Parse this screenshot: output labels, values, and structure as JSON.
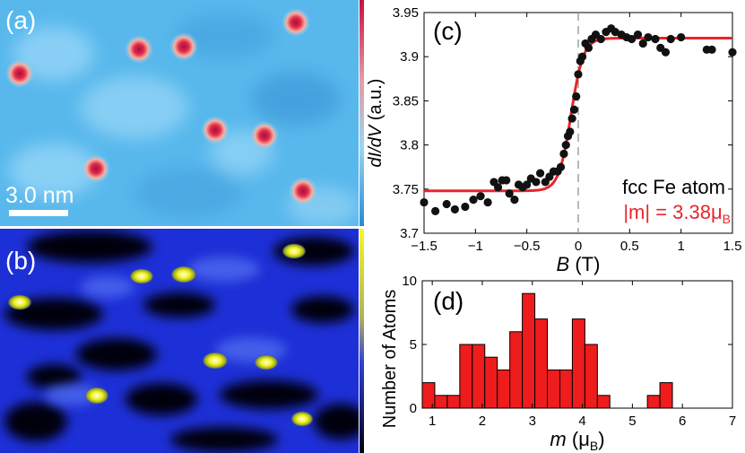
{
  "panels": {
    "a": {
      "label": "(a)",
      "scale_bar": "3.0 nm"
    },
    "b": {
      "label": "(b)"
    },
    "c": {
      "label": "(c)",
      "legend_title": "fcc Fe atom",
      "legend_moment": "|m| = 3.38μ",
      "legend_moment_sub": "B"
    },
    "d": {
      "label": "(d)"
    }
  },
  "colors": {
    "fit_line": "#e8262a",
    "histogram_bar": "#ee1c1c",
    "points": "#111111",
    "panel_a_bg": "#58b8ec",
    "panel_b_bg": "#1d2fd6"
  },
  "chart_data": [
    {
      "type": "scatter",
      "panel": "c",
      "xlabel": "B",
      "xlabel_unit": "(T)",
      "ylabel": "dI/dV",
      "ylabel_unit": "(a.u.)",
      "xlim": [
        -1.5,
        1.5
      ],
      "ylim": [
        3.7,
        3.95
      ],
      "xticks": [
        -1.5,
        -1,
        -0.5,
        0,
        0.5,
        1,
        1.5
      ],
      "xtick_labels": [
        "−1.5",
        "−1",
        "−0.5",
        "0",
        "0.5",
        "1",
        "1.5"
      ],
      "yticks": [
        3.7,
        3.75,
        3.8,
        3.85,
        3.9,
        3.95
      ],
      "ytick_labels": [
        "3.7",
        "3.75",
        "3.8",
        "3.85",
        "3.9",
        "3.95"
      ],
      "dashed_vline_x": 0,
      "series": [
        {
          "name": "data",
          "x": [
            -1.5,
            -1.39,
            -1.28,
            -1.2,
            -1.1,
            -1.02,
            -0.95,
            -0.88,
            -0.82,
            -0.78,
            -0.74,
            -0.7,
            -0.67,
            -0.62,
            -0.58,
            -0.54,
            -0.5,
            -0.46,
            -0.41,
            -0.37,
            -0.32,
            -0.28,
            -0.24,
            -0.2,
            -0.17,
            -0.14,
            -0.12,
            -0.1,
            -0.08,
            -0.06,
            -0.04,
            -0.02,
            0.0,
            0.02,
            0.04,
            0.07,
            0.1,
            0.13,
            0.17,
            0.22,
            0.27,
            0.32,
            0.36,
            0.42,
            0.47,
            0.52,
            0.58,
            0.63,
            0.68,
            0.75,
            0.8,
            0.85,
            0.9,
            1.0,
            1.25,
            1.3,
            1.5
          ],
          "y": [
            3.735,
            3.725,
            3.733,
            3.727,
            3.73,
            3.738,
            3.742,
            3.735,
            3.758,
            3.752,
            3.76,
            3.76,
            3.745,
            3.738,
            3.755,
            3.752,
            3.755,
            3.762,
            3.758,
            3.768,
            3.758,
            3.764,
            3.77,
            3.77,
            3.775,
            3.79,
            3.8,
            3.81,
            3.815,
            3.83,
            3.84,
            3.855,
            3.88,
            3.895,
            3.9,
            3.915,
            3.91,
            3.92,
            3.925,
            3.92,
            3.928,
            3.932,
            3.928,
            3.925,
            3.922,
            3.92,
            3.925,
            3.915,
            3.922,
            3.92,
            3.91,
            3.905,
            3.92,
            3.922,
            3.908,
            3.908,
            3.905
          ]
        },
        {
          "name": "fit",
          "model": "tanh",
          "low": 3.748,
          "high": 3.921,
          "center": -0.07,
          "width": 0.12
        }
      ]
    },
    {
      "type": "bar",
      "panel": "d",
      "xlabel": "m",
      "xlabel_unit": "(μ",
      "xlabel_unit_sub": "B",
      "ylabel": "Number of Atoms",
      "xlim": [
        0.8,
        7
      ],
      "ylim": [
        0,
        10
      ],
      "xticks": [
        1,
        2,
        3,
        4,
        5,
        6,
        7
      ],
      "xtick_labels": [
        "1",
        "2",
        "3",
        "4",
        "5",
        "6",
        "7"
      ],
      "yticks": [
        0,
        5,
        10
      ],
      "ytick_labels": [
        "0",
        "5",
        "10"
      ],
      "bin_width": 0.25,
      "bin_start": 0.8,
      "values": [
        2,
        1,
        1,
        5,
        5,
        4,
        3,
        6,
        9,
        7,
        3,
        3,
        7,
        5,
        1,
        0,
        0,
        0,
        1,
        2
      ]
    }
  ]
}
